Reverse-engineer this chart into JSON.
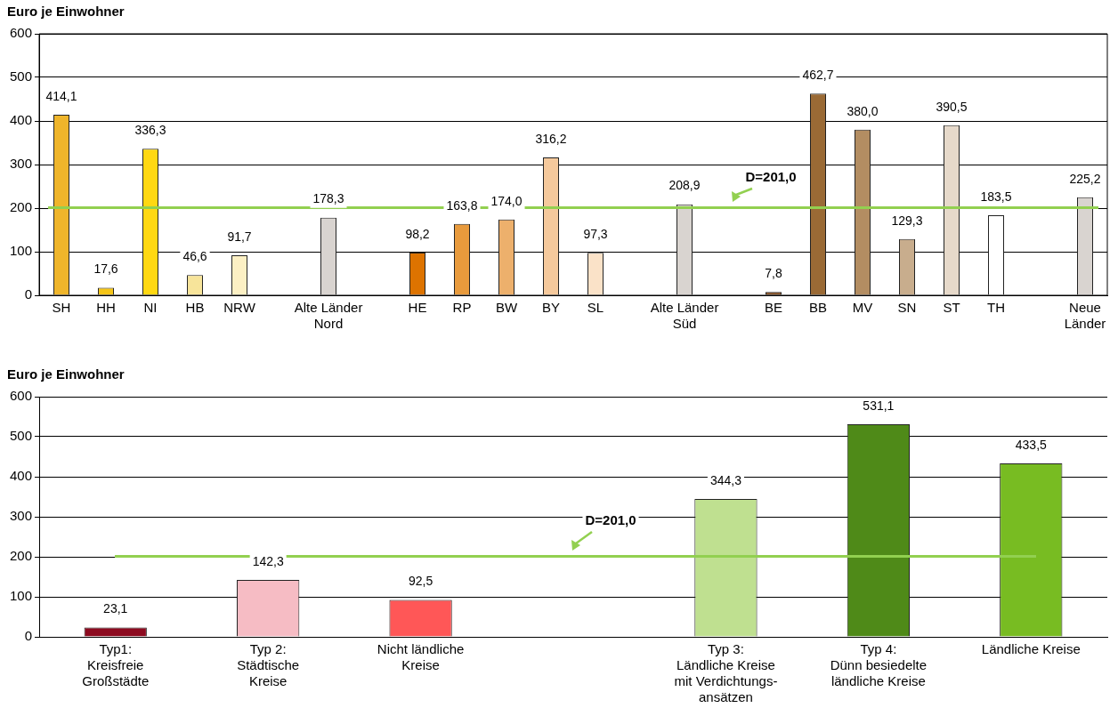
{
  "chart_data": [
    {
      "type": "bar",
      "ylabel": "Euro je Einwohner",
      "categories": [
        "SH",
        "HH",
        "NI",
        "HB",
        "NRW",
        null,
        "Alte Länder\nNord",
        null,
        "HE",
        "RP",
        "BW",
        "BY",
        "SL",
        null,
        "Alte Länder\nSüd",
        null,
        "BE",
        "BB",
        "MV",
        "SN",
        "ST",
        "TH",
        null,
        "Neue\nLänder"
      ],
      "values": [
        414.1,
        17.6,
        336.3,
        46.6,
        91.7,
        null,
        178.3,
        null,
        98.2,
        163.8,
        174.0,
        316.2,
        97.3,
        null,
        208.9,
        null,
        7.8,
        462.7,
        380.0,
        129.3,
        390.5,
        183.5,
        null,
        225.2
      ],
      "value_labels": [
        "414,1",
        "17,6",
        "336,3",
        "46,6",
        "91,7",
        null,
        "178,3",
        null,
        "98,2",
        "163,8",
        "174,0",
        "316,2",
        "97,3",
        null,
        "208,9",
        null,
        "7,8",
        "462,7",
        "380,0",
        "129,3",
        "390,5",
        "183,5",
        null,
        "225,2"
      ],
      "colors": [
        "#efb52b",
        "#f5c518",
        "#ffd812",
        "#f7e49a",
        "#fcf0c4",
        "#ffffff",
        "#d9d4d0",
        "#ffffff",
        "#dd7300",
        "#e89a3c",
        "#edb06c",
        "#f5c99c",
        "#fae2c8",
        "#ffffff",
        "#d9d4d0",
        "#ffffff",
        "#7a4518",
        "#9a6a35",
        "#b38d62",
        "#c8ad8d",
        "#e6d9ca",
        "#ffffff",
        "#ffffff",
        "#d9d4d0"
      ],
      "ylim": [
        0,
        600
      ],
      "yticks": [
        0,
        100,
        200,
        300,
        400,
        500,
        600
      ],
      "grid": "y",
      "legend": false,
      "ref_lines": [
        {
          "axis": "y",
          "value": 201.0,
          "label": "D=201,0",
          "color": "#92d050"
        }
      ]
    },
    {
      "type": "bar",
      "ylabel": "Euro je Einwohner",
      "categories": [
        "Typ1:\nKreisfreie\nGroßstädte",
        "Typ 2:\nStädtische\nKreise",
        "Nicht ländliche\nKreise",
        null,
        "Typ 3:\nLändliche Kreise\nmit Verdichtungs-\nansätzen",
        "Typ 4:\nDünn besiedelte\nländliche Kreise",
        "Ländliche Kreise"
      ],
      "values": [
        23.1,
        142.3,
        92.5,
        null,
        344.3,
        531.1,
        433.5
      ],
      "value_labels": [
        "23,1",
        "142,3",
        "92,5",
        null,
        "344,3",
        "531,1",
        "433,5"
      ],
      "colors": [
        "#8c0a1f",
        "#f6bcc4",
        "#ff5757",
        "#ffffff",
        "#bfe090",
        "#4f8a18",
        "#78bc22"
      ],
      "ylim": [
        0,
        600
      ],
      "yticks": [
        0,
        100,
        200,
        300,
        400,
        500,
        600
      ],
      "grid": "y",
      "legend": false,
      "ref_lines": [
        {
          "axis": "y",
          "value": 201.0,
          "label": "D=201,0",
          "color": "#92d050"
        }
      ]
    }
  ]
}
